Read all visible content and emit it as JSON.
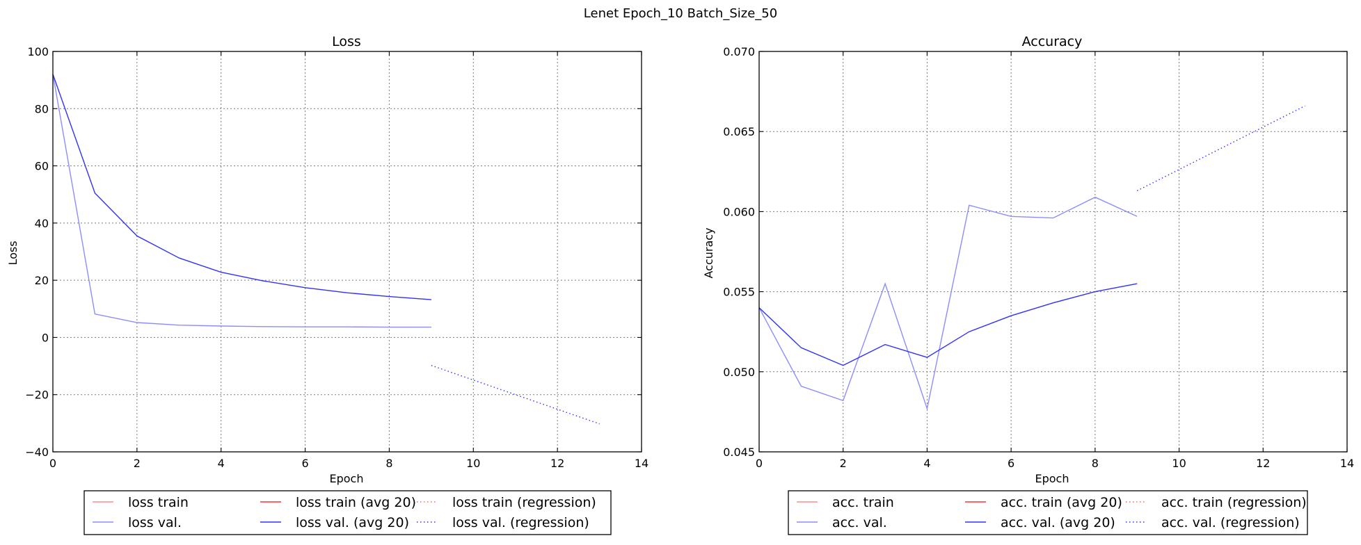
{
  "figure_title": "Lenet Epoch_10 Batch_Size_50",
  "chart_data": [
    {
      "type": "line",
      "title": "Loss",
      "xlabel": "Epoch",
      "ylabel": "Loss",
      "xlim": [
        0,
        14
      ],
      "ylim": [
        -40,
        100
      ],
      "xticks": [
        "0",
        "2",
        "4",
        "6",
        "8",
        "10",
        "12",
        "14"
      ],
      "yticks": [
        "−40",
        "−20",
        "0",
        "20",
        "40",
        "60",
        "80",
        "100"
      ],
      "grid": true,
      "legend_position": "below",
      "series": [
        {
          "name": "loss train",
          "color": "#ff8c8c",
          "style": "solid",
          "x": [],
          "y": []
        },
        {
          "name": "loss val.",
          "color": "#8c8cff",
          "style": "solid",
          "x": [
            0,
            1,
            2,
            3,
            4,
            5,
            6,
            7,
            8,
            9
          ],
          "y": [
            92,
            8.2,
            5.2,
            4.3,
            4.0,
            3.8,
            3.7,
            3.7,
            3.6,
            3.6
          ]
        },
        {
          "name": "loss train (avg 20)",
          "color": "#ff3030",
          "style": "solid",
          "x": [],
          "y": []
        },
        {
          "name": "loss val. (avg 20)",
          "color": "#3030ff",
          "style": "solid",
          "x": [
            0,
            1,
            2,
            3,
            4,
            5,
            6,
            7,
            8,
            9
          ],
          "y": [
            92,
            50.5,
            35.5,
            27.8,
            22.8,
            19.8,
            17.4,
            15.6,
            14.3,
            13.2
          ]
        },
        {
          "name": "loss train (regression)",
          "color": "#ff6060",
          "style": "dotted",
          "x": [],
          "y": []
        },
        {
          "name": "loss val. (regression)",
          "color": "#3030ff",
          "style": "dotted",
          "x": [
            9,
            13
          ],
          "y": [
            -9.8,
            -30.2
          ]
        }
      ]
    },
    {
      "type": "line",
      "title": "Accuracy",
      "xlabel": "Epoch",
      "ylabel": "Accuracy",
      "xlim": [
        0,
        14
      ],
      "ylim": [
        0.045,
        0.07
      ],
      "xticks": [
        "0",
        "2",
        "4",
        "6",
        "8",
        "10",
        "12",
        "14"
      ],
      "yticks": [
        "0.045",
        "0.050",
        "0.055",
        "0.060",
        "0.065",
        "0.070"
      ],
      "grid": true,
      "legend_position": "below",
      "series": [
        {
          "name": "acc. train",
          "color": "#ff8c8c",
          "style": "solid",
          "x": [],
          "y": []
        },
        {
          "name": "acc. val.",
          "color": "#8c8cff",
          "style": "solid",
          "x": [
            0,
            1,
            2,
            3,
            4,
            5,
            6,
            7,
            8,
            9
          ],
          "y": [
            0.054,
            0.0491,
            0.0482,
            0.0555,
            0.0477,
            0.0604,
            0.0597,
            0.0596,
            0.0609,
            0.0597
          ]
        },
        {
          "name": "acc. train (avg 20)",
          "color": "#ff3030",
          "style": "solid",
          "x": [],
          "y": []
        },
        {
          "name": "acc. val. (avg 20)",
          "color": "#3030ff",
          "style": "solid",
          "x": [
            0,
            1,
            2,
            3,
            4,
            5,
            6,
            7,
            8,
            9
          ],
          "y": [
            0.054,
            0.0515,
            0.0504,
            0.0517,
            0.0509,
            0.0525,
            0.0535,
            0.0543,
            0.055,
            0.0555
          ]
        },
        {
          "name": "acc. train (regression)",
          "color": "#ff6060",
          "style": "dotted",
          "x": [],
          "y": []
        },
        {
          "name": "acc. val. (regression)",
          "color": "#3030ff",
          "style": "dotted",
          "x": [
            9,
            13
          ],
          "y": [
            0.0613,
            0.0666
          ]
        }
      ]
    }
  ]
}
